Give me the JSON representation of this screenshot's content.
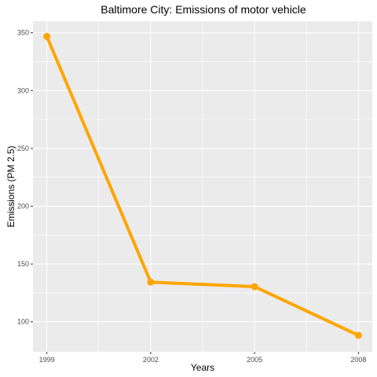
{
  "chart_data": {
    "type": "line",
    "title": "Baltimore City: Emissions of motor vehicle",
    "xlabel": "Years",
    "ylabel": "Emissions (PM 2.5)",
    "x": [
      1999,
      2002,
      2005,
      2008
    ],
    "series": [
      {
        "values": [
          346.8,
          134.3,
          130.4,
          88.3
        ]
      }
    ],
    "xticks": [
      "1999",
      "2002",
      "2005",
      "2008"
    ],
    "yticks": [
      "100",
      "150",
      "200",
      "250",
      "300",
      "350"
    ],
    "ylim": [
      74,
      360
    ],
    "xlim": [
      1998.6,
      2008.4
    ],
    "grid": true,
    "colors": {
      "line": "#FFA500",
      "panel": "#EBEBEB",
      "grid": "#FFFFFF"
    }
  }
}
